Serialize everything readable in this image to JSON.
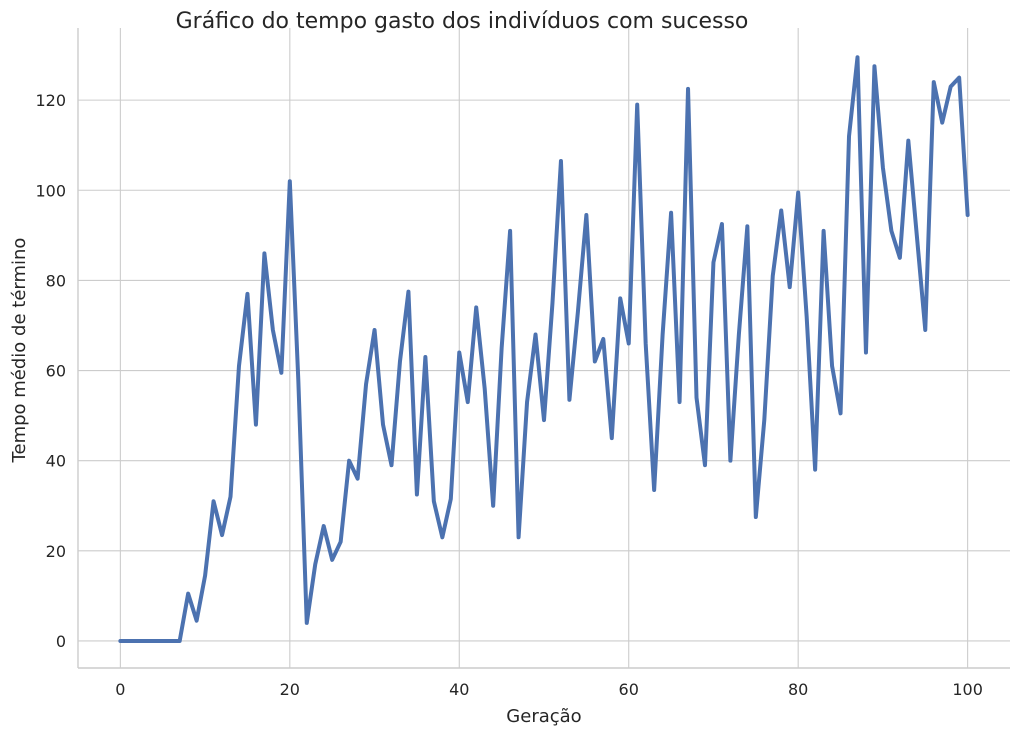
{
  "chart_data": {
    "type": "line",
    "title": "Gráfico do tempo gasto dos indivíduos com sucesso",
    "xlabel": "Geração",
    "ylabel": "Tempo médio de término",
    "xlim": [
      -5,
      105
    ],
    "ylim": [
      -6,
      136
    ],
    "xticks": [
      0,
      20,
      40,
      60,
      80,
      100
    ],
    "yticks": [
      0,
      20,
      40,
      60,
      80,
      100,
      120
    ],
    "grid": true,
    "series": [
      {
        "color": "#4c72b0",
        "x": [
          0,
          1,
          2,
          3,
          4,
          5,
          6,
          7,
          8,
          9,
          10,
          11,
          12,
          13,
          14,
          15,
          16,
          17,
          18,
          19,
          20,
          21,
          22,
          23,
          24,
          25,
          26,
          27,
          28,
          29,
          30,
          31,
          32,
          33,
          34,
          35,
          36,
          37,
          38,
          39,
          40,
          41,
          42,
          43,
          44,
          45,
          46,
          47,
          48,
          49,
          50,
          51,
          52,
          53,
          54,
          55,
          56,
          57,
          58,
          59,
          60,
          61,
          62,
          63,
          64,
          65,
          66,
          67,
          68,
          69,
          70,
          71,
          72,
          73,
          74,
          75,
          76,
          77,
          78,
          79,
          80,
          81,
          82,
          83,
          84,
          85,
          86,
          87,
          88,
          89,
          90,
          91,
          92,
          93,
          94,
          95,
          96,
          97,
          98,
          99,
          100
        ],
        "values": [
          0,
          0,
          0,
          0,
          0,
          0,
          0,
          0,
          10.5,
          4.5,
          14.5,
          31,
          23.5,
          32,
          61,
          77,
          48,
          86,
          69,
          59.5,
          102,
          58,
          4,
          17,
          25.5,
          18,
          22,
          40,
          36,
          57,
          69,
          48,
          39,
          62,
          77.5,
          32.5,
          63,
          31,
          23,
          31.5,
          64,
          53,
          74,
          56,
          30,
          65,
          91,
          23,
          53,
          68,
          49,
          75,
          106.5,
          53.5,
          73,
          94.5,
          62,
          67,
          45,
          76,
          66,
          119,
          66,
          33.5,
          68,
          95,
          53,
          122.5,
          54,
          39,
          84,
          92.5,
          40,
          68,
          92,
          27.5,
          49,
          81,
          95.5,
          78.5,
          99.5,
          72,
          38,
          91,
          61,
          50.5,
          112,
          129.5,
          64,
          127.5,
          105,
          91,
          85,
          111,
          90,
          69,
          124,
          115,
          123,
          125,
          94.5
        ]
      }
    ]
  }
}
